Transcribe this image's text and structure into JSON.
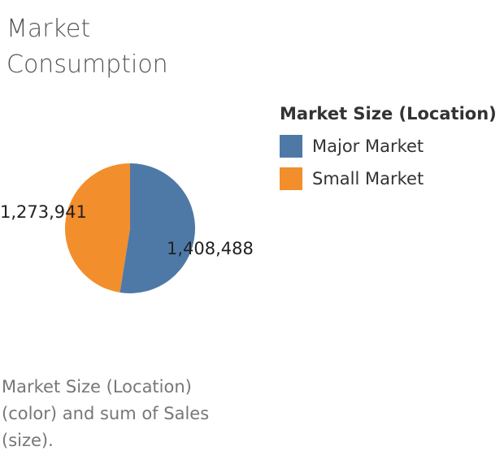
{
  "title": "Market Consumption",
  "legend": {
    "title": "Market Size (Location)",
    "items": [
      {
        "label": "Major Market",
        "color": "#4E79A7"
      },
      {
        "label": "Small Market",
        "color": "#F28E2B"
      }
    ]
  },
  "footer": "Market Size (Location) (color) and sum of Sales (size).",
  "chart_data": {
    "type": "pie",
    "title": "Market Consumption",
    "categories": [
      "Major Market",
      "Small Market"
    ],
    "values": [
      1408488,
      1273941
    ],
    "labels": [
      "1,408,488",
      "1,273,941"
    ],
    "colors": [
      "#4E79A7",
      "#F28E2B"
    ],
    "legend_position": "right"
  }
}
